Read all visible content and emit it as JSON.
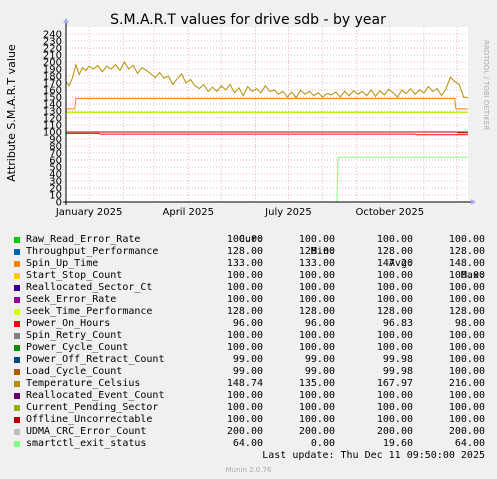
{
  "chart_data": {
    "type": "line",
    "title": "S.M.A.R.T values for drive sdb - by year",
    "ylabel": "Attribute S.M.A.R.T value",
    "watermark": "RRDTOOL / TOBI OETIKER",
    "ylim": [
      0,
      250
    ],
    "yticks": [
      0,
      10,
      20,
      30,
      40,
      50,
      60,
      70,
      80,
      90,
      100,
      110,
      120,
      130,
      140,
      150,
      160,
      170,
      180,
      190,
      200,
      210,
      220,
      230,
      240
    ],
    "x_range": [
      "2024-12-11",
      "2025-12-11"
    ],
    "x_ticks": [
      {
        "label": "January 2025",
        "date": "2025-01-01"
      },
      {
        "label": "April 2025",
        "date": "2025-04-01"
      },
      {
        "label": "July 2025",
        "date": "2025-07-01"
      },
      {
        "label": "October 2025",
        "date": "2025-10-01"
      }
    ],
    "x_minor_dates": [
      "2024-12-01",
      "2025-01-01",
      "2025-02-01",
      "2025-03-01",
      "2025-04-01",
      "2025-05-01",
      "2025-06-01",
      "2025-07-01",
      "2025-08-01",
      "2025-09-01",
      "2025-10-01",
      "2025-11-01",
      "2025-12-01"
    ],
    "grid": true,
    "columns": [
      "Cur:",
      "Min:",
      "Avg:",
      "Max:"
    ],
    "series": [
      {
        "name": "Raw_Read_Error_Rate",
        "color": "#00cc00",
        "dashed": true,
        "cur": "100.00",
        "min": "100.00",
        "avg": "100.00",
        "max": "100.00",
        "points": [
          [
            "2024-12-11",
            100
          ],
          [
            "2025-12-11",
            100
          ]
        ],
        "draw": false
      },
      {
        "name": "Throughput_Performance",
        "color": "#0066b3",
        "cur": "128.00",
        "min": "128.00",
        "avg": "128.00",
        "max": "128.00",
        "points": [
          [
            "2024-12-11",
            128
          ],
          [
            "2025-12-11",
            128
          ]
        ]
      },
      {
        "name": "Spin_Up_Time",
        "color": "#ff8000",
        "cur": "133.00",
        "min": "133.00",
        "avg": "147.20",
        "max": "148.00",
        "points": [
          [
            "2024-12-11",
            133
          ],
          [
            "2024-12-19",
            133
          ],
          [
            "2024-12-20",
            148
          ],
          [
            "2025-11-29",
            148
          ],
          [
            "2025-11-30",
            133
          ],
          [
            "2025-12-11",
            133
          ]
        ]
      },
      {
        "name": "Start_Stop_Count",
        "color": "#ffcc00",
        "cur": "100.00",
        "min": "100.00",
        "avg": "100.00",
        "max": "100.00",
        "points": [
          [
            "2024-12-11",
            100
          ],
          [
            "2025-12-11",
            100
          ]
        ],
        "draw": false
      },
      {
        "name": "Reallocated_Sector_Ct",
        "color": "#330099",
        "cur": "100.00",
        "min": "100.00",
        "avg": "100.00",
        "max": "100.00",
        "points": [
          [
            "2024-12-11",
            100
          ],
          [
            "2025-12-11",
            100
          ]
        ],
        "draw": false
      },
      {
        "name": "Seek_Error_Rate",
        "color": "#990099",
        "cur": "100.00",
        "min": "100.00",
        "avg": "100.00",
        "max": "100.00",
        "points": [
          [
            "2024-12-11",
            100
          ],
          [
            "2025-12-11",
            100
          ]
        ],
        "draw": false
      },
      {
        "name": "Seek_Time_Performance",
        "color": "#ccff00",
        "cur": "128.00",
        "min": "128.00",
        "avg": "128.00",
        "max": "128.00",
        "points": [
          [
            "2024-12-11",
            128
          ],
          [
            "2025-12-11",
            128
          ]
        ]
      },
      {
        "name": "Power_On_Hours",
        "color": "#ff0000",
        "cur": "96.00",
        "min": "96.00",
        "avg": "96.83",
        "max": "98.00",
        "points": [
          [
            "2024-12-11",
            98
          ],
          [
            "2025-01-10",
            98
          ],
          [
            "2025-01-11",
            97
          ],
          [
            "2025-10-24",
            97
          ],
          [
            "2025-10-25",
            96
          ],
          [
            "2025-12-11",
            96
          ]
        ]
      },
      {
        "name": "Spin_Retry_Count",
        "color": "#808080",
        "cur": "100.00",
        "min": "100.00",
        "avg": "100.00",
        "max": "100.00",
        "points": [
          [
            "2024-12-11",
            100
          ],
          [
            "2025-12-11",
            100
          ]
        ],
        "draw": false
      },
      {
        "name": "Power_Cycle_Count",
        "color": "#008f00",
        "cur": "100.00",
        "min": "100.00",
        "avg": "100.00",
        "max": "100.00",
        "points": [
          [
            "2024-12-11",
            100
          ],
          [
            "2025-12-11",
            100
          ]
        ],
        "draw": false
      },
      {
        "name": "Power_Off_Retract_Count",
        "color": "#00487d",
        "cur": "99.00",
        "min": "99.00",
        "avg": "99.98",
        "max": "100.00",
        "points": [
          [
            "2024-12-11",
            100
          ],
          [
            "2025-12-01",
            100
          ],
          [
            "2025-12-02",
            99
          ],
          [
            "2025-12-11",
            99
          ]
        ]
      },
      {
        "name": "Load_Cycle_Count",
        "color": "#b35a00",
        "cur": "99.00",
        "min": "99.00",
        "avg": "99.98",
        "max": "100.00",
        "points": [
          [
            "2024-12-11",
            100
          ],
          [
            "2025-12-01",
            100
          ],
          [
            "2025-12-02",
            99
          ],
          [
            "2025-12-11",
            99
          ]
        ]
      },
      {
        "name": "Temperature_Celsius",
        "color": "#b38f00",
        "cur": "148.74",
        "min": "135.00",
        "avg": "167.97",
        "max": "216.00",
        "points": [
          [
            "2024-12-11",
            172
          ],
          [
            "2024-12-14",
            166
          ],
          [
            "2024-12-17",
            178
          ],
          [
            "2024-12-20",
            196
          ],
          [
            "2024-12-23",
            182
          ],
          [
            "2024-12-26",
            192
          ],
          [
            "2024-12-29",
            188
          ],
          [
            "2025-01-01",
            194
          ],
          [
            "2025-01-05",
            190
          ],
          [
            "2025-01-09",
            195
          ],
          [
            "2025-01-13",
            186
          ],
          [
            "2025-01-17",
            194
          ],
          [
            "2025-01-21",
            190
          ],
          [
            "2025-01-25",
            196
          ],
          [
            "2025-01-29",
            188
          ],
          [
            "2025-02-02",
            200
          ],
          [
            "2025-02-06",
            190
          ],
          [
            "2025-02-10",
            195
          ],
          [
            "2025-02-14",
            184
          ],
          [
            "2025-02-18",
            192
          ],
          [
            "2025-02-22",
            188
          ],
          [
            "2025-02-26",
            183
          ],
          [
            "2025-03-02",
            178
          ],
          [
            "2025-03-06",
            185
          ],
          [
            "2025-03-10",
            177
          ],
          [
            "2025-03-14",
            180
          ],
          [
            "2025-03-18",
            168
          ],
          [
            "2025-03-22",
            176
          ],
          [
            "2025-03-26",
            183
          ],
          [
            "2025-03-30",
            170
          ],
          [
            "2025-04-03",
            175
          ],
          [
            "2025-04-07",
            166
          ],
          [
            "2025-04-11",
            162
          ],
          [
            "2025-04-15",
            168
          ],
          [
            "2025-04-19",
            158
          ],
          [
            "2025-04-23",
            164
          ],
          [
            "2025-04-27",
            158
          ],
          [
            "2025-05-01",
            166
          ],
          [
            "2025-05-05",
            160
          ],
          [
            "2025-05-09",
            168
          ],
          [
            "2025-05-13",
            156
          ],
          [
            "2025-05-17",
            163
          ],
          [
            "2025-05-21",
            152
          ],
          [
            "2025-05-25",
            165
          ],
          [
            "2025-05-29",
            158
          ],
          [
            "2025-06-02",
            162
          ],
          [
            "2025-06-06",
            156
          ],
          [
            "2025-06-10",
            166
          ],
          [
            "2025-06-14",
            158
          ],
          [
            "2025-06-18",
            160
          ],
          [
            "2025-06-22",
            154
          ],
          [
            "2025-06-26",
            158
          ],
          [
            "2025-06-30",
            150
          ],
          [
            "2025-07-04",
            157
          ],
          [
            "2025-07-08",
            149
          ],
          [
            "2025-07-12",
            160
          ],
          [
            "2025-07-16",
            154
          ],
          [
            "2025-07-20",
            158
          ],
          [
            "2025-07-24",
            152
          ],
          [
            "2025-07-28",
            156
          ],
          [
            "2025-08-01",
            150
          ],
          [
            "2025-08-05",
            155
          ],
          [
            "2025-08-09",
            153
          ],
          [
            "2025-08-13",
            157
          ],
          [
            "2025-08-17",
            150
          ],
          [
            "2025-08-21",
            158
          ],
          [
            "2025-08-25",
            152
          ],
          [
            "2025-08-29",
            159
          ],
          [
            "2025-09-02",
            154
          ],
          [
            "2025-09-06",
            158
          ],
          [
            "2025-09-10",
            152
          ],
          [
            "2025-09-14",
            160
          ],
          [
            "2025-09-18",
            151
          ],
          [
            "2025-09-22",
            159
          ],
          [
            "2025-09-26",
            153
          ],
          [
            "2025-09-30",
            161
          ],
          [
            "2025-10-04",
            156
          ],
          [
            "2025-10-08",
            150
          ],
          [
            "2025-10-12",
            160
          ],
          [
            "2025-10-16",
            155
          ],
          [
            "2025-10-20",
            162
          ],
          [
            "2025-10-24",
            154
          ],
          [
            "2025-10-28",
            160
          ],
          [
            "2025-11-01",
            156
          ],
          [
            "2025-11-05",
            165
          ],
          [
            "2025-11-09",
            158
          ],
          [
            "2025-11-13",
            162
          ],
          [
            "2025-11-17",
            152
          ],
          [
            "2025-11-21",
            162
          ],
          [
            "2025-11-25",
            178
          ],
          [
            "2025-11-29",
            172
          ],
          [
            "2025-12-03",
            168
          ],
          [
            "2025-12-07",
            150
          ],
          [
            "2025-12-11",
            149
          ]
        ]
      },
      {
        "name": "Reallocated_Event_Count",
        "color": "#6b006b",
        "cur": "100.00",
        "min": "100.00",
        "avg": "100.00",
        "max": "100.00",
        "points": [
          [
            "2024-12-11",
            100
          ],
          [
            "2025-12-11",
            100
          ]
        ],
        "draw": false
      },
      {
        "name": "Current_Pending_Sector",
        "color": "#8fb300",
        "cur": "100.00",
        "min": "100.00",
        "avg": "100.00",
        "max": "100.00",
        "points": [
          [
            "2024-12-11",
            100
          ],
          [
            "2025-12-11",
            100
          ]
        ],
        "draw": false
      },
      {
        "name": "Offline_Uncorrectable",
        "color": "#b30000",
        "cur": "100.00",
        "min": "100.00",
        "avg": "100.00",
        "max": "100.00",
        "points": [
          [
            "2024-12-11",
            100
          ],
          [
            "2025-12-11",
            100
          ]
        ]
      },
      {
        "name": "UDMA_CRC_Error_Count",
        "color": "#bebebe",
        "cur": "200.00",
        "min": "200.00",
        "avg": "200.00",
        "max": "200.00",
        "points": [
          [
            "2024-12-11",
            200
          ],
          [
            "2025-12-11",
            200
          ]
        ],
        "draw": false
      },
      {
        "name": "smartctl_exit_status",
        "color": "#80ff80",
        "cur": "64.00",
        "min": "0.00",
        "avg": "19.60",
        "max": "64.00",
        "points": [
          [
            "2024-12-11",
            0
          ],
          [
            "2025-08-14",
            0
          ],
          [
            "2025-08-15",
            64
          ],
          [
            "2025-12-11",
            64
          ]
        ]
      }
    ],
    "last_update": "Last update: Thu Dec 11 09:50:00 2025",
    "footer": "Munin 2.0.76"
  }
}
